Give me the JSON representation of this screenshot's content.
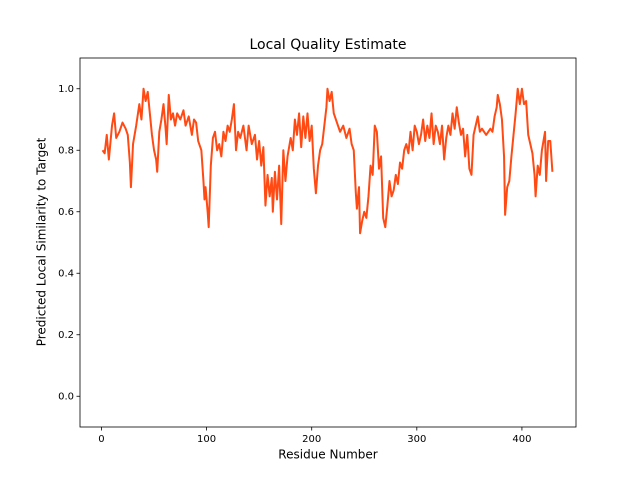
{
  "chart_data": {
    "type": "line",
    "title": "Local Quality Estimate",
    "xlabel": "Residue Number",
    "ylabel": "Predicted Local Similarity to Target",
    "xlim": [
      -20.45,
      451.45
    ],
    "ylim": [
      -0.1,
      1.1
    ],
    "xticks": [
      0,
      100,
      200,
      300,
      400
    ],
    "yticks": [
      {
        "value": 0,
        "label": "0.0"
      },
      {
        "value": 0.2,
        "label": "0.2"
      },
      {
        "value": 0.4,
        "label": "0.4"
      },
      {
        "value": 0.6,
        "label": "0.6"
      },
      {
        "value": 0.8,
        "label": "0.8"
      },
      {
        "value": 1,
        "label": "1.0"
      }
    ],
    "x": [
      1,
      3,
      5,
      7,
      10,
      12,
      14,
      17,
      20,
      23,
      25,
      27,
      28,
      30,
      33,
      36,
      38,
      40,
      42,
      44,
      46,
      48,
      50,
      52,
      53,
      55,
      57,
      59,
      61,
      62,
      64,
      66,
      68,
      70,
      72,
      75,
      78,
      80,
      83,
      86,
      88,
      90,
      92,
      95,
      97,
      98,
      99,
      101,
      102,
      104,
      106,
      108,
      110,
      112,
      114,
      116,
      118,
      120,
      122,
      124,
      126,
      128,
      130,
      132,
      135,
      138,
      140,
      143,
      146,
      148,
      150,
      152,
      154,
      156,
      158,
      160,
      162,
      163,
      165,
      167,
      169,
      171,
      173,
      175,
      177,
      180,
      182,
      184,
      186,
      188,
      190,
      192,
      194,
      196,
      198,
      200,
      202,
      204,
      206,
      208,
      210,
      212,
      214,
      215,
      217,
      219,
      221,
      224,
      227,
      230,
      233,
      236,
      238,
      240,
      242,
      243,
      245,
      246,
      248,
      250,
      252,
      254,
      256,
      258,
      260,
      262,
      264,
      266,
      268,
      270,
      272,
      274,
      276,
      278,
      280,
      282,
      284,
      286,
      288,
      290,
      292,
      294,
      296,
      298,
      300,
      302,
      304,
      306,
      308,
      310,
      312,
      314,
      316,
      318,
      320,
      322,
      324,
      326,
      328,
      330,
      332,
      334,
      336,
      338,
      340,
      342,
      344,
      346,
      348,
      350,
      352,
      354,
      356,
      358,
      360,
      362,
      364,
      366,
      368,
      370,
      372,
      374,
      376,
      377,
      379,
      381,
      383,
      384,
      386,
      388,
      390,
      392,
      394,
      396,
      398,
      400,
      402,
      404,
      406,
      408,
      410,
      412,
      413,
      415,
      417,
      419,
      421,
      422,
      423,
      425,
      427,
      429
    ],
    "series": [
      {
        "color": "#ff4a14",
        "values": [
          0.8,
          0.79,
          0.85,
          0.77,
          0.88,
          0.92,
          0.84,
          0.86,
          0.89,
          0.87,
          0.85,
          0.76,
          0.68,
          0.82,
          0.88,
          0.95,
          0.9,
          1.0,
          0.96,
          0.99,
          0.92,
          0.85,
          0.8,
          0.77,
          0.73,
          0.86,
          0.9,
          0.95,
          0.87,
          0.82,
          0.98,
          0.9,
          0.92,
          0.88,
          0.92,
          0.9,
          0.93,
          0.88,
          0.91,
          0.85,
          0.9,
          0.89,
          0.83,
          0.8,
          0.7,
          0.64,
          0.68,
          0.6,
          0.55,
          0.75,
          0.84,
          0.86,
          0.8,
          0.82,
          0.78,
          0.86,
          0.83,
          0.88,
          0.86,
          0.9,
          0.95,
          0.8,
          0.86,
          0.84,
          0.88,
          0.8,
          0.88,
          0.82,
          0.85,
          0.77,
          0.83,
          0.75,
          0.81,
          0.62,
          0.72,
          0.65,
          0.71,
          0.6,
          0.73,
          0.64,
          0.75,
          0.56,
          0.8,
          0.7,
          0.78,
          0.84,
          0.8,
          0.9,
          0.85,
          0.92,
          0.81,
          0.91,
          0.84,
          0.92,
          0.83,
          0.88,
          0.74,
          0.66,
          0.75,
          0.8,
          0.82,
          0.88,
          0.94,
          1.0,
          0.96,
          0.99,
          0.92,
          0.89,
          0.86,
          0.88,
          0.84,
          0.87,
          0.82,
          0.8,
          0.66,
          0.61,
          0.68,
          0.53,
          0.57,
          0.6,
          0.58,
          0.65,
          0.75,
          0.72,
          0.88,
          0.86,
          0.74,
          0.78,
          0.58,
          0.55,
          0.62,
          0.7,
          0.65,
          0.67,
          0.72,
          0.69,
          0.76,
          0.74,
          0.8,
          0.82,
          0.79,
          0.86,
          0.8,
          0.88,
          0.86,
          0.82,
          0.85,
          0.9,
          0.83,
          0.88,
          0.84,
          0.92,
          0.82,
          0.88,
          0.86,
          0.82,
          0.88,
          0.77,
          0.84,
          0.88,
          0.85,
          0.92,
          0.87,
          0.94,
          0.89,
          0.85,
          0.87,
          0.78,
          0.85,
          0.74,
          0.72,
          0.85,
          0.88,
          0.91,
          0.86,
          0.87,
          0.86,
          0.85,
          0.86,
          0.87,
          0.86,
          0.91,
          0.94,
          0.98,
          0.95,
          0.9,
          0.78,
          0.59,
          0.68,
          0.7,
          0.78,
          0.85,
          0.92,
          1.0,
          0.95,
          1.0,
          0.95,
          0.96,
          0.85,
          0.82,
          0.79,
          0.72,
          0.65,
          0.75,
          0.72,
          0.8,
          0.84,
          0.86,
          0.7,
          0.83,
          0.83,
          0.73
        ]
      }
    ]
  }
}
